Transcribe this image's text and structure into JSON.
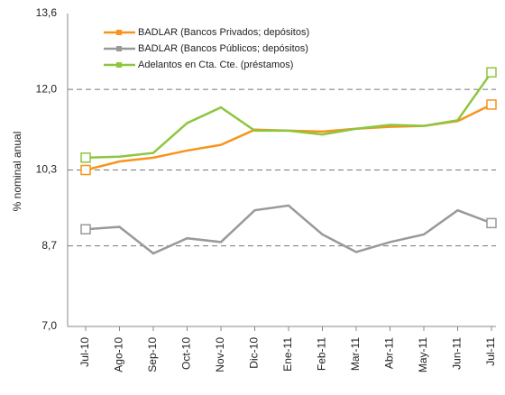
{
  "chart_data": {
    "type": "line",
    "y_label": "% nominal anual",
    "categories": [
      "Jul-10",
      "Ago-10",
      "Sep-10",
      "Oct-10",
      "Nov-10",
      "Dic-10",
      "Ene-11",
      "Feb-11",
      "Mar-11",
      "Abr-11",
      "May-11",
      "Jun-11",
      "Jul-11"
    ],
    "series": [
      {
        "name": "BADLAR (Bancos Privados; depósitos)",
        "color": "#f7941d",
        "values": [
          10.3,
          10.48,
          10.56,
          10.71,
          10.83,
          11.15,
          11.13,
          11.11,
          11.17,
          11.21,
          11.23,
          11.33,
          11.68
        ]
      },
      {
        "name": "BADLAR (Bancos Públicos; depósitos)",
        "color": "#999999",
        "values": [
          9.05,
          9.1,
          8.54,
          8.86,
          8.78,
          9.45,
          9.55,
          8.94,
          8.57,
          8.78,
          8.94,
          9.45,
          9.18
        ]
      },
      {
        "name": "Adelantos en Cta. Cte. (préstamos)",
        "color": "#8dc63f",
        "values": [
          10.56,
          10.58,
          10.66,
          11.29,
          11.62,
          11.13,
          11.13,
          11.05,
          11.17,
          11.25,
          11.23,
          11.35,
          12.36
        ]
      }
    ],
    "ylim": [
      7.0,
      13.6
    ],
    "yticks": [
      {
        "value": 7.0,
        "label": "7,0"
      },
      {
        "value": 8.7,
        "label": "8,7"
      },
      {
        "value": 10.3,
        "label": "10,3"
      },
      {
        "value": 12.0,
        "label": "12,0"
      },
      {
        "value": 13.6,
        "label": "13,6"
      }
    ],
    "grid": true,
    "legend": "upper left"
  }
}
